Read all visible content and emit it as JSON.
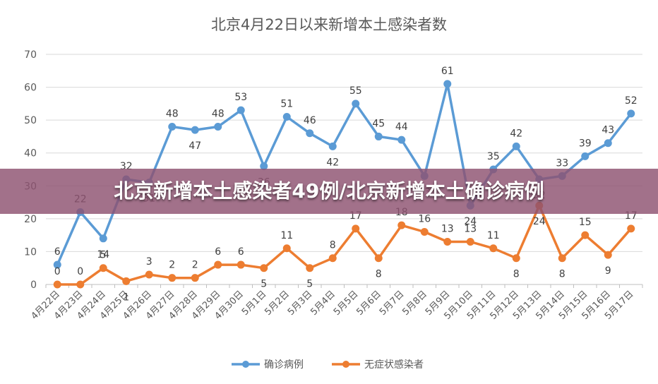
{
  "chart_data": {
    "type": "line",
    "title": "北京4月22日以来新增本土感染者数",
    "categories": [
      "4月22日",
      "4月23日",
      "4月24日",
      "4月25日",
      "4月26日",
      "4月27日",
      "4月28日",
      "4月29日",
      "4月30日",
      "5月1日",
      "5月2日",
      "5月3日",
      "5月4日",
      "5月5日",
      "5月6日",
      "5月7日",
      "5月8日",
      "5月9日",
      "5月10日",
      "5月11日",
      "5月12日",
      "5月13日",
      "5月14日",
      "5月15日",
      "5月16日",
      "5月17日"
    ],
    "series": [
      {
        "name": "确诊病例",
        "color": "#5b9bd5",
        "values": [
          6,
          22,
          14,
          32,
          31,
          48,
          47,
          48,
          53,
          36,
          51,
          46,
          42,
          55,
          45,
          44,
          33,
          61,
          24,
          35,
          42,
          32,
          33,
          39,
          43,
          52
        ]
      },
      {
        "name": "无症状感染者",
        "color": "#ed7d31",
        "values": [
          0,
          0,
          5,
          1,
          3,
          2,
          2,
          6,
          6,
          5,
          11,
          5,
          8,
          17,
          8,
          18,
          16,
          13,
          13,
          11,
          8,
          24,
          8,
          15,
          9,
          17
        ]
      }
    ],
    "ylim": [
      0,
      70
    ],
    "yticks": [
      0,
      10,
      20,
      30,
      40,
      50,
      60,
      70
    ],
    "grid": true,
    "legend": "bottom"
  },
  "banner": {
    "text": "北京新增本土感染者49例/北京新增本土确诊病例"
  }
}
